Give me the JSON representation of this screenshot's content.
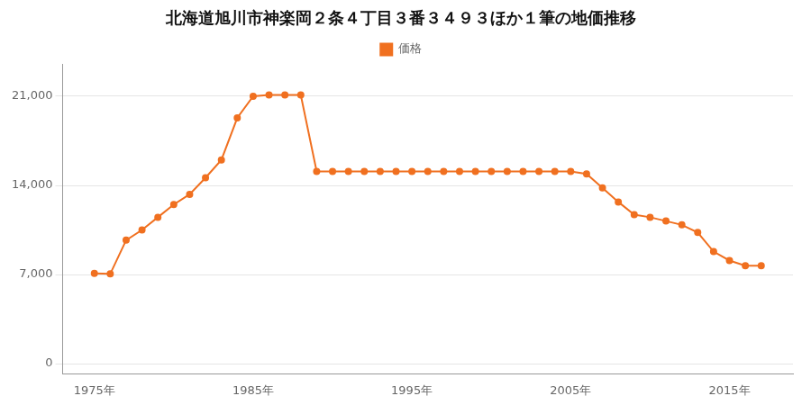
{
  "chart_data": {
    "type": "line",
    "title": "北海道旭川市神楽岡２条４丁目３番３４９３ほか１筆の地価推移",
    "x": [
      1975,
      1976,
      1977,
      1978,
      1979,
      1980,
      1981,
      1982,
      1983,
      1984,
      1985,
      1986,
      1987,
      1988,
      1989,
      1990,
      1991,
      1992,
      1993,
      1994,
      1995,
      1996,
      1997,
      1998,
      1999,
      2000,
      2001,
      2002,
      2003,
      2004,
      2005,
      2006,
      2007,
      2008,
      2009,
      2010,
      2011,
      2012,
      2013,
      2014,
      2015,
      2016,
      2017
    ],
    "series": [
      {
        "name": "価格",
        "color": "#f07020",
        "marker": "circle",
        "values": [
          7100,
          7050,
          9700,
          10500,
          11500,
          12500,
          13300,
          14600,
          16000,
          19300,
          21000,
          21100,
          21100,
          21100,
          15100,
          15100,
          15100,
          15100,
          15100,
          15100,
          15100,
          15100,
          15100,
          15100,
          15100,
          15100,
          15100,
          15100,
          15100,
          15100,
          15100,
          14900,
          13800,
          12700,
          11700,
          11500,
          11200,
          10900,
          10300,
          8800,
          8100,
          7700,
          7700
        ]
      }
    ],
    "xlim": [
      1973,
      2019
    ],
    "xticks": [
      {
        "value": 1975,
        "label": "1975年"
      },
      {
        "value": 1985,
        "label": "1985年"
      },
      {
        "value": 1995,
        "label": "1995年"
      },
      {
        "value": 2005,
        "label": "2005年"
      },
      {
        "value": 2015,
        "label": "2015年"
      }
    ],
    "ylim": [
      -800,
      23500
    ],
    "yticks": [
      0,
      {
        "value": 7000,
        "label": "7,000"
      },
      {
        "value": 14000,
        "label": "14,000"
      },
      {
        "value": 21000,
        "label": "21,000"
      }
    ],
    "grid": "y",
    "legend": "top"
  }
}
